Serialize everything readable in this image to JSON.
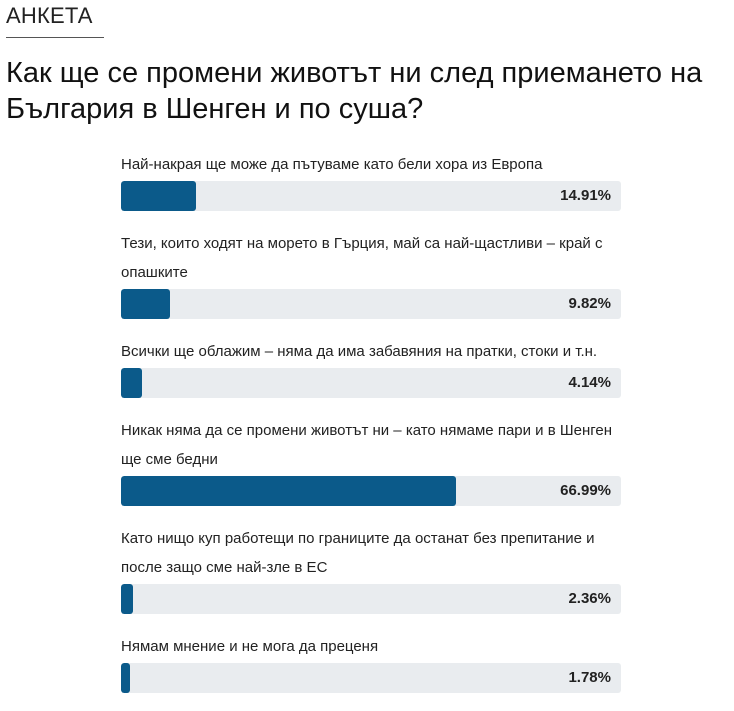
{
  "section": {
    "label": "АНКЕТА"
  },
  "poll": {
    "question": "Как ще се промени животът ни след приемането на България в Шенген и по суша?",
    "accent_color": "#0b5a8a",
    "track_color": "#e9ecef",
    "options": [
      {
        "label": "Най-накрая ще може да пътуваме като бели хора из Европа",
        "percent": 14.91,
        "percent_label": "14.91%"
      },
      {
        "label": "Тези, които ходят на морето в Гърция, май са най-щастливи – край с опашките",
        "percent": 9.82,
        "percent_label": "9.82%"
      },
      {
        "label": "Всички ще облажим – няма да има забавяния на пратки, стоки и т.н.",
        "percent": 4.14,
        "percent_label": "4.14%"
      },
      {
        "label": "Никак няма да се промени животът ни – като нямаме пари и в Шенген ще сме бедни",
        "percent": 66.99,
        "percent_label": "66.99%"
      },
      {
        "label": "Като нищо куп работещи по границите да останат без препитание и после защо сме най-зле в ЕС",
        "percent": 2.36,
        "percent_label": "2.36%"
      },
      {
        "label": "Нямам мнение и не мога да преценя",
        "percent": 1.78,
        "percent_label": "1.78%"
      }
    ]
  }
}
